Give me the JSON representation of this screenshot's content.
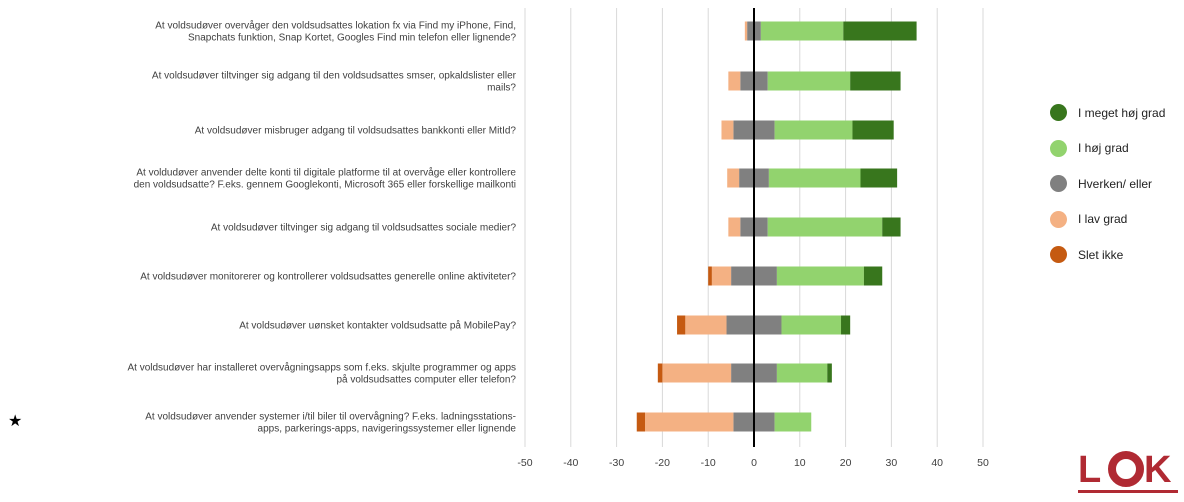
{
  "chart_data": {
    "type": "bar",
    "subtype": "diverging-stacked-horizontal",
    "categories": [
      [
        "At voldsudøver overvåger den voldsudsattes lokation fx via Find my iPhone, Find,",
        "Snapchats funktion, Snap Kortet, Googles Find min telefon eller lignende?"
      ],
      [
        "At voldsudøver tiltvinger sig adgang til den voldsudsattes smser, opkaldslister eller",
        "mails?"
      ],
      [
        "At voldsudøver misbruger adgang til voldsudsattes bankkonti eller MitId?"
      ],
      [
        "At voldudøver anvender delte konti til digitale platforme til at overvåge eller kontrollere",
        "den voldsudsatte? F.eks. gennem Googlekonti, Microsoft 365 eller forskellige mailkonti"
      ],
      [
        "At voldsudøver tiltvinger sig adgang til voldsudsattes sociale medier?"
      ],
      [
        "At voldsudøver monitorerer og kontrollerer voldsudsattes generelle online aktiviteter?"
      ],
      [
        "At voldsudøver uønsket kontakter voldsudsatte på MobilePay?"
      ],
      [
        "At voldsudøver har installeret overvågningsapps som f.eks. skjulte programmer og apps",
        "på voldsudsattes computer eller telefon?"
      ],
      [
        "At voldsudøver anvender systemer i/til biler til overvågning? F.eks. ladningsstations-",
        "apps, parkerings-apps, navigeringssystemer eller lignende"
      ]
    ],
    "series": [
      {
        "name": "Slet ikke",
        "color": "#C55A11",
        "values": [
          0,
          0,
          0,
          0,
          0,
          0.8,
          1.8,
          1.0,
          1.8
        ]
      },
      {
        "name": "I lav grad",
        "color": "#F4B183",
        "values": [
          0.5,
          2.6,
          2.6,
          2.6,
          2.6,
          4.2,
          9.0,
          15.0,
          19.3
        ]
      },
      {
        "name": "Hverken/ eller",
        "color": "#808080",
        "values": [
          3.0,
          6.0,
          9.0,
          6.5,
          6.0,
          10.0,
          12.0,
          10.0,
          9.0
        ]
      },
      {
        "name": "I høj grad",
        "color": "#92D36E",
        "values": [
          18.0,
          18.0,
          17.0,
          20.0,
          25.0,
          19.0,
          13.0,
          11.0,
          8.0
        ]
      },
      {
        "name": "I meget høj grad",
        "color": "#38761D",
        "values": [
          16.0,
          11.0,
          9.0,
          8.0,
          4.0,
          4.0,
          2.0,
          1.0,
          0
        ]
      }
    ],
    "legend": [
      "I meget høj grad",
      "I høj grad",
      "Hverken/ eller",
      "I lav grad",
      "Slet ikke"
    ],
    "xlim": [
      -50,
      50
    ],
    "xticks": [
      -50,
      -40,
      -30,
      -20,
      -10,
      0,
      10,
      20,
      30,
      40,
      50
    ],
    "grid": "vertical",
    "legend_position": "right"
  },
  "marker": "★",
  "logo_text": "LOK"
}
